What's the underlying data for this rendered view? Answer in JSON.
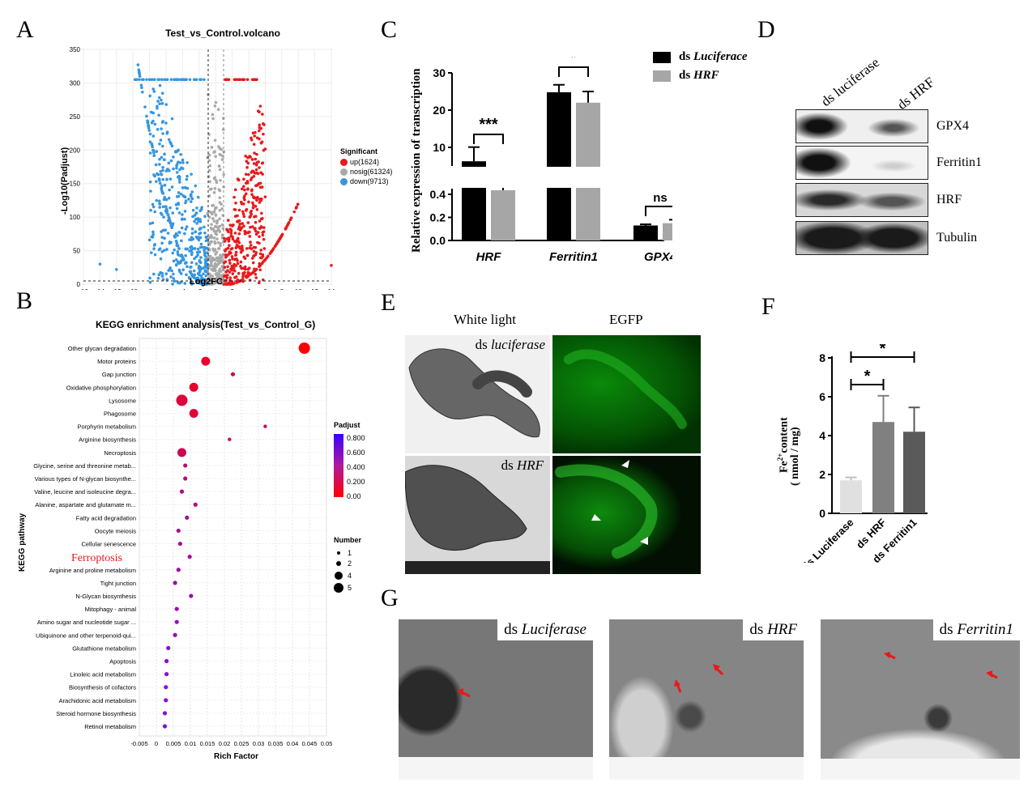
{
  "panels": {
    "A": "A",
    "B": "B",
    "C": "C",
    "D": "D",
    "E": "E",
    "F": "F",
    "G": "G"
  },
  "volcano": {
    "title": "Test_vs_Control.volcano",
    "xlabel": "Log2FC",
    "ylabel": "-Log10(Padjust)",
    "legend_title": "Significant",
    "legend": [
      {
        "label": "up(1624)",
        "color": "#e8191c"
      },
      {
        "label": "nosig(61324)",
        "color": "#a9a9a9"
      },
      {
        "label": "down(9713)",
        "color": "#3596e0"
      }
    ],
    "xticks": [
      "-16",
      "-14",
      "-12",
      "-10",
      "-8",
      "-6",
      "-4",
      "-2",
      "0",
      "2",
      "4",
      "6",
      "8",
      "10",
      "12",
      "14"
    ],
    "yticks": [
      "0",
      "50",
      "100",
      "150",
      "200",
      "250",
      "300",
      "350"
    ]
  },
  "kegg": {
    "title": "KEGG enrichment analysis(Test_vs_Control_G)",
    "xlabel": "Rich Factor",
    "ylabel": "KEGG pathway",
    "xticks": [
      "-0.005",
      "0",
      "0.005",
      "0.01",
      "0.015",
      "0.02",
      "0.025",
      "0.03",
      "0.035",
      "0.04",
      "0.045",
      "0.05"
    ],
    "padj_title": "Padjust",
    "padj_ticks": [
      "0.800",
      "0.600",
      "0.400",
      "0.200",
      "0.00"
    ],
    "number_title": "Number",
    "number_ticks": [
      "1",
      "2",
      "4",
      "5"
    ],
    "highlight": "Ferroptosis"
  },
  "chart_data": [
    {
      "type": "scatter",
      "title": "KEGG enrichment analysis(Test_vs_Control_G)",
      "xlabel": "Rich Factor",
      "ylabel": "KEGG pathway",
      "xlim": [
        -0.005,
        0.05
      ],
      "points": [
        {
          "pathway": "Other glycan degradation",
          "rich": 0.0435,
          "number": 5,
          "padj": 0.0
        },
        {
          "pathway": "Motor proteins",
          "rich": 0.0145,
          "number": 4,
          "padj": 0.15
        },
        {
          "pathway": "Gap junction",
          "rich": 0.0225,
          "number": 2,
          "padj": 0.25
        },
        {
          "pathway": "Oxidative phosphorylation",
          "rich": 0.011,
          "number": 4,
          "padj": 0.15
        },
        {
          "pathway": "Lysosome",
          "rich": 0.0075,
          "number": 5,
          "padj": 0.2
        },
        {
          "pathway": "Phagosome",
          "rich": 0.011,
          "number": 4,
          "padj": 0.2
        },
        {
          "pathway": "Porphyrin metabolism",
          "rich": 0.032,
          "number": 1,
          "padj": 0.3
        },
        {
          "pathway": "Arginine biosynthesis",
          "rich": 0.0215,
          "number": 1,
          "padj": 0.35
        },
        {
          "pathway": "Necroptosis",
          "rich": 0.0075,
          "number": 4,
          "padj": 0.3
        },
        {
          "pathway": "Glycine, serine and threonine metab...",
          "rich": 0.0085,
          "number": 2,
          "padj": 0.4
        },
        {
          "pathway": "Various types of N-glycan biosynthe...",
          "rich": 0.0085,
          "number": 2,
          "padj": 0.4
        },
        {
          "pathway": "Valine, leucine and isoleucine degra...",
          "rich": 0.0075,
          "number": 2,
          "padj": 0.45
        },
        {
          "pathway": "Alanine, aspartate and glutamate m...",
          "rich": 0.0115,
          "number": 2,
          "padj": 0.45
        },
        {
          "pathway": "Fatty acid degradation",
          "rich": 0.009,
          "number": 2,
          "padj": 0.5
        },
        {
          "pathway": "Oocyte meiosis",
          "rich": 0.0065,
          "number": 2,
          "padj": 0.5
        },
        {
          "pathway": "Cellular senescence",
          "rich": 0.007,
          "number": 2,
          "padj": 0.55
        },
        {
          "pathway": "Ferroptosis",
          "rich": 0.0098,
          "number": 2,
          "padj": 0.55
        },
        {
          "pathway": "Arginine and proline metabolism",
          "rich": 0.0065,
          "number": 2,
          "padj": 0.55
        },
        {
          "pathway": "Tight junction",
          "rich": 0.0055,
          "number": 2,
          "padj": 0.6
        },
        {
          "pathway": "N-Glycan biosynthesis",
          "rich": 0.0102,
          "number": 2,
          "padj": 0.6
        },
        {
          "pathway": "Mitophagy - animal",
          "rich": 0.006,
          "number": 2,
          "padj": 0.6
        },
        {
          "pathway": "Amino sugar and nucleotide sugar ...",
          "rich": 0.006,
          "number": 2,
          "padj": 0.65
        },
        {
          "pathway": "Ubiquinone and other terpenoid-qui...",
          "rich": 0.0055,
          "number": 2,
          "padj": 0.65
        },
        {
          "pathway": "Glutathione metabolism",
          "rich": 0.0035,
          "number": 2,
          "padj": 0.7
        },
        {
          "pathway": "Apoptosis",
          "rich": 0.003,
          "number": 2,
          "padj": 0.7
        },
        {
          "pathway": "Linoleic acid metabolism",
          "rich": 0.003,
          "number": 2,
          "padj": 0.7
        },
        {
          "pathway": "Biosynthesis of cofactors",
          "rich": 0.0028,
          "number": 2,
          "padj": 0.75
        },
        {
          "pathway": "Arachidonic acid metabolism",
          "rich": 0.0028,
          "number": 2,
          "padj": 0.75
        },
        {
          "pathway": "Steroid hormone biosynthesis",
          "rich": 0.0025,
          "number": 2,
          "padj": 0.75
        },
        {
          "pathway": "Retinol metabolism",
          "rich": 0.0025,
          "number": 2,
          "padj": 0.8
        }
      ]
    },
    {
      "type": "bar",
      "ylabel": "Relative expression of transcription",
      "categories": [
        "HRF",
        "Ferritin1",
        "GPX4"
      ],
      "series": [
        {
          "name": "ds Luciferace",
          "color": "#000000",
          "values": [
            5.7,
            24.8,
            0.13
          ],
          "errors": [
            2.5,
            2.0,
            0.01
          ]
        },
        {
          "name": "ds HRF",
          "color": "#a6a6a6",
          "values": [
            1.0,
            22.0,
            0.15
          ],
          "errors": [
            0.8,
            3.0,
            0.03
          ]
        }
      ],
      "significance": [
        "***",
        "*",
        "ns"
      ],
      "yticks_upper": [
        "10",
        "20",
        "30"
      ],
      "yticks_lower": [
        "0.0",
        "0.2",
        "0.4"
      ]
    },
    {
      "type": "bar",
      "ylabel": "Fe2+ content ( nmol / mg)",
      "categories": [
        "ds Luciferase",
        "ds HRF",
        "ds Ferritin1"
      ],
      "values": [
        1.7,
        4.7,
        4.2
      ],
      "errors": [
        0.15,
        1.35,
        1.25
      ],
      "colors": [
        "#e0e0e0",
        "#808080",
        "#5a5a5a"
      ],
      "ylim": [
        0,
        8
      ],
      "yticks": [
        "0",
        "2",
        "4",
        "6",
        "8"
      ],
      "significance": [
        "*",
        "*"
      ]
    }
  ],
  "blot": {
    "lanes": [
      "ds luciferase",
      "ds HRF"
    ],
    "rows": [
      "GPX4",
      "Ferritin1",
      "HRF",
      "Tubulin"
    ]
  },
  "imaging": {
    "col1": "White light",
    "col2": "EGFP",
    "row1_label_prefix": "ds ",
    "row1_label_italic": "luciferase",
    "row2_label_prefix": "ds ",
    "row2_label_italic": "HRF"
  },
  "tem": [
    {
      "prefix": "ds ",
      "italic": "Luciferase"
    },
    {
      "prefix": "ds ",
      "italic": "HRF"
    },
    {
      "prefix": "ds ",
      "italic": "Ferritin1"
    }
  ]
}
